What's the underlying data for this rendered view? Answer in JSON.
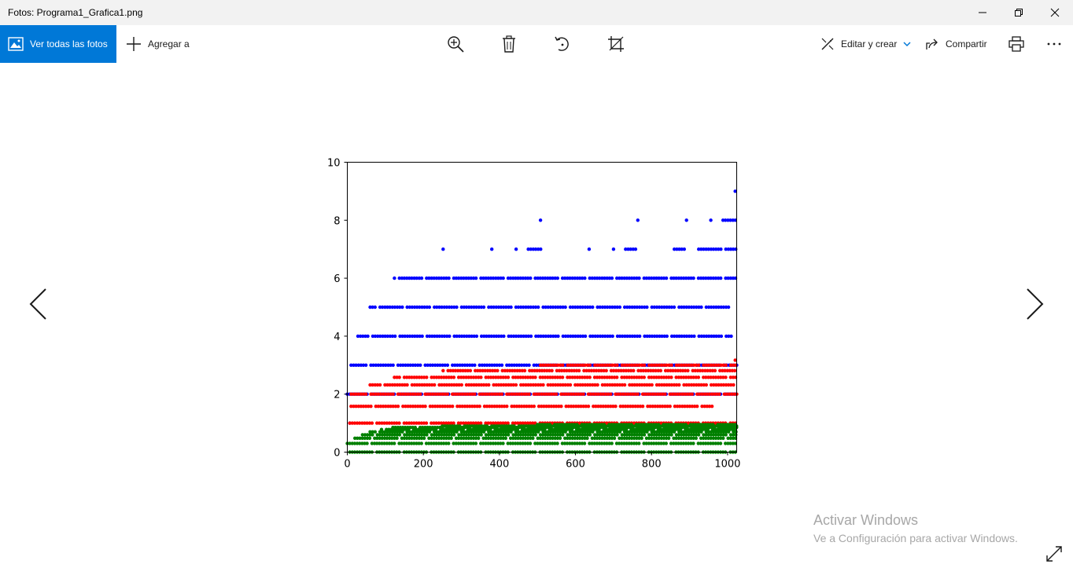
{
  "window": {
    "title": "Fotos: Programa1_Grafica1.png",
    "controls": [
      "minimize-icon",
      "restore-icon",
      "close-icon"
    ]
  },
  "toolbar": {
    "view_all_label": "Ver todas las fotos",
    "add_to_label": "Agregar a",
    "tools": [
      "zoom-in-icon",
      "delete-icon",
      "rotate-icon",
      "crop-icon"
    ],
    "edit_create_label": "Editar y crear",
    "share_label": "Compartir",
    "print_icon": "print-icon",
    "more_icon": "more-icon"
  },
  "navigation": {
    "prev_icon": "chevron-left-icon",
    "next_icon": "chevron-right-icon"
  },
  "watermark": {
    "line1": "Activar Windows",
    "line2": "Ve a Configuración para activar Windows."
  },
  "colors": {
    "accent": "#0078d7",
    "series_blue": "#0000ff",
    "series_red": "#ff0000",
    "series_green": "#008000"
  },
  "chart_data": {
    "type": "scatter",
    "title": "",
    "xlabel": "",
    "ylabel": "",
    "xlim": [
      0,
      1024
    ],
    "ylim": [
      0,
      10
    ],
    "xticks": [
      0,
      200,
      400,
      600,
      800,
      1000
    ],
    "yticks": [
      0,
      2,
      4,
      6,
      8,
      10
    ],
    "grid": false,
    "series": [
      {
        "color": "#0000ff",
        "bands": [
          {
            "y": 1,
            "ranges": [
              [
                0,
                10
              ],
              [
                128,
                132
              ],
              [
                256,
                262
              ]
            ]
          },
          {
            "y": 2,
            "ranges": [
              [
                0,
                1024
              ]
            ]
          },
          {
            "y": 3,
            "ranges": [
              [
                10,
                1024
              ]
            ]
          },
          {
            "y": 4,
            "ranges": [
              [
                28,
                1010
              ]
            ]
          },
          {
            "y": 5,
            "ranges": [
              [
                60,
                1010
              ]
            ]
          },
          {
            "y": 6,
            "ranges": [
              [
                124,
                1024
              ]
            ]
          },
          {
            "y": 7,
            "ranges": [
              [
                252,
                252
              ],
              [
                380,
                380
              ],
              [
                444,
                444
              ],
              [
                476,
                510
              ],
              [
                636,
                636
              ],
              [
                700,
                700
              ],
              [
                732,
                760
              ],
              [
                860,
                890
              ],
              [
                924,
                1024
              ]
            ]
          },
          {
            "y": 8,
            "ranges": [
              [
                508,
                508
              ],
              [
                764,
                764
              ],
              [
                892,
                892
              ],
              [
                956,
                956
              ],
              [
                988,
                1024
              ]
            ]
          },
          {
            "y": 9,
            "ranges": [
              [
                1020,
                1020
              ]
            ]
          }
        ]
      },
      {
        "color": "#ff0000",
        "bands": [
          {
            "y": 1,
            "ranges": [
              [
                0,
                1024
              ]
            ]
          },
          {
            "y": 1.58,
            "ranges": [
              [
                10,
                960
              ]
            ]
          },
          {
            "y": 2,
            "ranges": [
              [
                10,
                1024
              ]
            ]
          },
          {
            "y": 2.32,
            "ranges": [
              [
                60,
                1024
              ]
            ]
          },
          {
            "y": 2.58,
            "ranges": [
              [
                124,
                1024
              ]
            ]
          },
          {
            "y": 2.81,
            "ranges": [
              [
                252,
                1024
              ]
            ]
          },
          {
            "y": 3,
            "ranges": [
              [
                508,
                1024
              ]
            ]
          },
          {
            "y": 3.17,
            "ranges": [
              [
                1020,
                1024
              ]
            ]
          }
        ]
      },
      {
        "color": "#008000",
        "bands": [
          {
            "y": 0,
            "ranges": [
              [
                0,
                1024
              ]
            ]
          },
          {
            "y": 0.3,
            "ranges": [
              [
                0,
                1024
              ]
            ]
          },
          {
            "y": 0.48,
            "ranges": [
              [
                20,
                1024
              ]
            ]
          },
          {
            "y": 0.6,
            "ranges": [
              [
                40,
                1024
              ]
            ]
          },
          {
            "y": 0.7,
            "ranges": [
              [
                60,
                1024
              ]
            ]
          },
          {
            "y": 0.78,
            "ranges": [
              [
                90,
                1024
              ]
            ]
          },
          {
            "y": 0.85,
            "ranges": [
              [
                120,
                1024
              ]
            ]
          },
          {
            "y": 0.9,
            "ranges": [
              [
                250,
                1024
              ]
            ]
          },
          {
            "y": 0.95,
            "ranges": [
              [
                500,
                1024
              ]
            ]
          }
        ]
      }
    ]
  }
}
